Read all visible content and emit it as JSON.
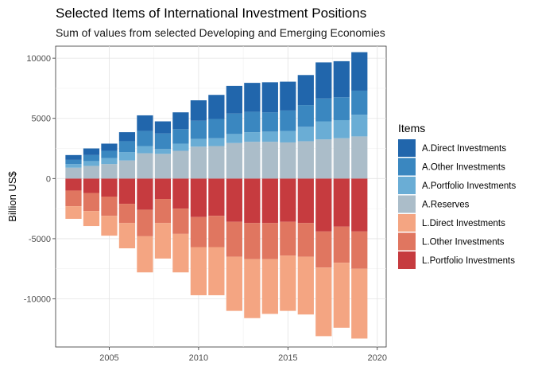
{
  "chart_data": {
    "type": "bar",
    "stacked": true,
    "title": "Selected Items of International Investment Positions",
    "subtitle": "Sum of values from selected Developing and Emerging Economies",
    "xlabel": "",
    "ylabel": "Billion US$",
    "x": [
      2003,
      2004,
      2005,
      2006,
      2007,
      2008,
      2009,
      2010,
      2011,
      2012,
      2013,
      2014,
      2015,
      2016,
      2017,
      2018,
      2019
    ],
    "xlim": [
      2002,
      2020.5
    ],
    "ylim": [
      -14000,
      11000
    ],
    "xticks": [
      2005,
      2010,
      2015,
      2020
    ],
    "yticks": [
      -10000,
      -5000,
      0,
      5000,
      10000
    ],
    "ytick_labels": [
      "-10000",
      "-5000",
      "0",
      "5000",
      "10000"
    ],
    "grid": true,
    "legend_title": "Items",
    "legend_position": "right",
    "series": [
      {
        "name": "A.Direct Investments",
        "color": "#2166ac",
        "values": [
          400,
          550,
          600,
          750,
          1300,
          1000,
          1400,
          1700,
          2000,
          2300,
          2400,
          2500,
          2400,
          2500,
          3000,
          3000,
          3200
        ]
      },
      {
        "name": "A.Other Investments",
        "color": "#3a87c0",
        "values": [
          350,
          500,
          600,
          900,
          1250,
          1300,
          1200,
          1500,
          1600,
          1700,
          1700,
          1600,
          1700,
          1800,
          1900,
          1900,
          2000
        ]
      },
      {
        "name": "A.Portfolio Investments",
        "color": "#6aadd5",
        "values": [
          300,
          400,
          500,
          700,
          600,
          400,
          600,
          650,
          650,
          750,
          800,
          850,
          950,
          1200,
          1500,
          1500,
          1800
        ]
      },
      {
        "name": "A.Reserves",
        "color": "#abbdc9",
        "values": [
          900,
          1050,
          1200,
          1500,
          2100,
          2050,
          2300,
          2650,
          2700,
          2950,
          3050,
          3050,
          3000,
          3100,
          3250,
          3350,
          3500
        ]
      },
      {
        "name": "L.Direct Investments",
        "color": "#f4a582",
        "values": [
          -1050,
          -1250,
          -1650,
          -2100,
          -3000,
          -2950,
          -3200,
          -4000,
          -4000,
          -4500,
          -4900,
          -4550,
          -4600,
          -4800,
          -5700,
          -5400,
          -5800
        ]
      },
      {
        "name": "L.Other Investments",
        "color": "#e07660",
        "values": [
          -1300,
          -1500,
          -1600,
          -1600,
          -2200,
          -2000,
          -2100,
          -2500,
          -2600,
          -2900,
          -3000,
          -3000,
          -2800,
          -2800,
          -3000,
          -3000,
          -3100
        ]
      },
      {
        "name": "L.Portfolio Investments",
        "color": "#c63b3f",
        "values": [
          -1000,
          -1200,
          -1500,
          -2100,
          -2600,
          -1700,
          -2500,
          -3200,
          -3100,
          -3600,
          -3700,
          -3700,
          -3600,
          -3700,
          -4400,
          -4000,
          -4400
        ]
      }
    ]
  }
}
